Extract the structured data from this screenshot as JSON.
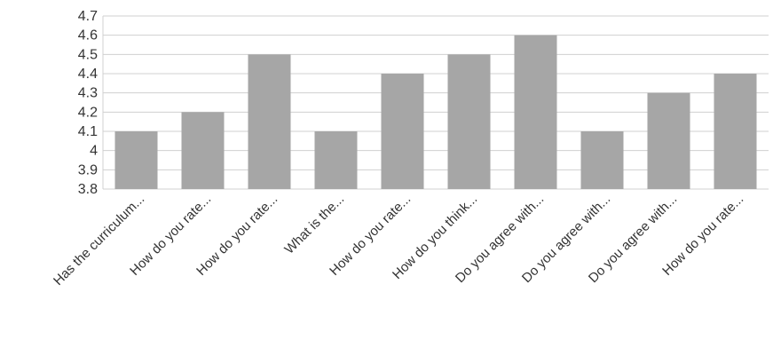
{
  "chart_data": {
    "type": "bar",
    "categories": [
      "Has the curriculum...",
      "How do you rate...",
      "How do you rate...",
      "What is the...",
      "How do you rate...",
      "How do you think...",
      "Do you agree with...",
      "Do you agree with...",
      "Do you agree with...",
      "How do you rate..."
    ],
    "values": [
      4.1,
      4.2,
      4.5,
      4.1,
      4.4,
      4.5,
      4.6,
      4.1,
      4.3,
      4.4
    ],
    "y_ticks": [
      "3.8",
      "3.9",
      "4",
      "4.1",
      "4.2",
      "4.3",
      "4.4",
      "4.5",
      "4.6",
      "4.7"
    ],
    "ylim": [
      3.8,
      4.7
    ],
    "grid": true,
    "legend": "none",
    "title": "",
    "xlabel": "",
    "ylabel": "",
    "bar_color": "#a6a6a6",
    "grid_color": "#d0d0d0"
  }
}
